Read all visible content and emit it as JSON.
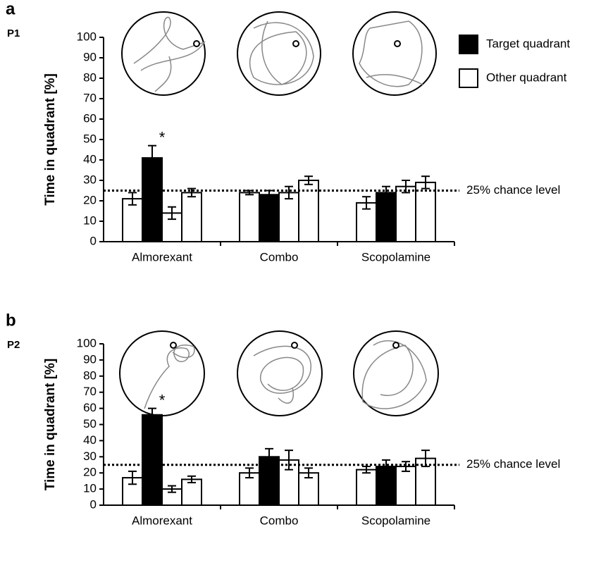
{
  "chart_data": [
    {
      "type": "bar",
      "panel_label": "a",
      "subtitle": "P1",
      "ylabel": "Time in quadrant [%]",
      "categories": [
        "Almorexant",
        "Combo",
        "Scopolamine"
      ],
      "series": [
        {
          "color": "#ffffff",
          "values": [
            21,
            24,
            19
          ],
          "errors": [
            3,
            1,
            3
          ]
        },
        {
          "color": "#000000",
          "values": [
            41,
            23,
            24
          ],
          "errors": [
            6,
            2,
            3
          ]
        },
        {
          "color": "#ffffff",
          "values": [
            14,
            24,
            27
          ],
          "errors": [
            3,
            3,
            3
          ]
        },
        {
          "color": "#ffffff",
          "values": [
            24,
            30,
            29
          ],
          "errors": [
            2,
            2,
            3
          ]
        }
      ],
      "ylim": [
        0,
        100
      ],
      "yticks": [
        0,
        10,
        20,
        30,
        40,
        50,
        60,
        70,
        80,
        90,
        100
      ],
      "chance_level": 25,
      "chance_label": "25% chance level",
      "annotations": [
        {
          "text": "*",
          "category": "Almorexant"
        }
      ],
      "legend": [
        {
          "label": "Target quadrant",
          "color": "#000000"
        },
        {
          "label": "Other quadrant",
          "color": "#ffffff"
        }
      ]
    },
    {
      "type": "bar",
      "panel_label": "b",
      "subtitle": "P2",
      "ylabel": "Time in quadrant [%]",
      "categories": [
        "Almorexant",
        "Combo",
        "Scopolamine"
      ],
      "series": [
        {
          "color": "#ffffff",
          "values": [
            17,
            20,
            22
          ],
          "errors": [
            4,
            3,
            2
          ]
        },
        {
          "color": "#000000",
          "values": [
            56,
            30,
            24
          ],
          "errors": [
            4,
            5,
            4
          ]
        },
        {
          "color": "#ffffff",
          "values": [
            10,
            28,
            24
          ],
          "errors": [
            2,
            6,
            3
          ]
        },
        {
          "color": "#ffffff",
          "values": [
            16,
            20,
            29
          ],
          "errors": [
            2,
            3,
            5
          ]
        }
      ],
      "ylim": [
        0,
        100
      ],
      "yticks": [
        0,
        10,
        20,
        30,
        40,
        50,
        60,
        70,
        80,
        90,
        100
      ],
      "chance_level": 25,
      "chance_label": "25% chance level",
      "annotations": [
        {
          "text": "*",
          "category": "Almorexant"
        }
      ]
    }
  ]
}
